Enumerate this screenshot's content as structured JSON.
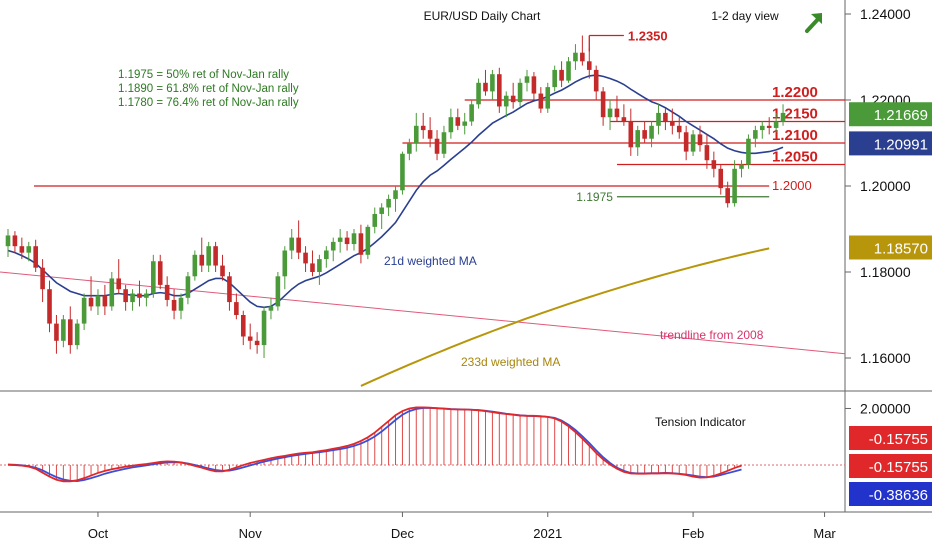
{
  "header": {
    "title": "EUR/USD Daily Chart",
    "view_label": "1-2 day view",
    "view_arrow": "up-right-arrow-icon"
  },
  "notes": [
    "1.1975 = 50% ret of Nov-Jan rally",
    "1.1890 = 61.8% ret of Nov-Jan rally",
    "1.1780 = 76.4% ret of Nov-Jan rally"
  ],
  "colors": {
    "up_candle": "#4a9a3a",
    "down_candle": "#c42a2a",
    "level_line": "#d01f1f",
    "ma21": "#2a3f8f",
    "ma233": "#b8960c",
    "trendline": "#e05a7a",
    "fib_line": "#3f7a33",
    "osc_red": "#e0282a",
    "osc_blue": "#3a4fd8",
    "badge_green": "#4a9a3a",
    "badge_navy": "#2a3f8f",
    "badge_gold": "#b8960c",
    "badge_red": "#e0282a",
    "badge_blue": "#2233cc"
  },
  "chart_data": [
    {
      "type": "candlestick",
      "title": "EUR/USD Daily Chart",
      "ylim": [
        1.152,
        1.245
      ],
      "y_ticks": [
        "1.24000",
        "1.22000",
        "1.20000",
        "1.18000",
        "1.16000"
      ],
      "x_ticks": [
        "Oct",
        "Nov",
        "Dec",
        "2021",
        "Feb",
        "Mar"
      ],
      "candles_ohlc": [
        [
          1.186,
          1.19,
          1.1835,
          1.1885
        ],
        [
          1.1885,
          1.1895,
          1.1845,
          1.186
        ],
        [
          1.186,
          1.188,
          1.183,
          1.1845
        ],
        [
          1.1845,
          1.187,
          1.1825,
          1.186
        ],
        [
          1.186,
          1.1875,
          1.18,
          1.181
        ],
        [
          1.181,
          1.183,
          1.173,
          1.176
        ],
        [
          1.176,
          1.178,
          1.166,
          1.168
        ],
        [
          1.168,
          1.17,
          1.161,
          1.164
        ],
        [
          1.164,
          1.17,
          1.1625,
          1.169
        ],
        [
          1.169,
          1.172,
          1.161,
          1.163
        ],
        [
          1.163,
          1.169,
          1.162,
          1.168
        ],
        [
          1.168,
          1.175,
          1.1665,
          1.174
        ],
        [
          1.174,
          1.179,
          1.171,
          1.172
        ],
        [
          1.172,
          1.176,
          1.17,
          1.1745
        ],
        [
          1.1745,
          1.177,
          1.17,
          1.172
        ],
        [
          1.172,
          1.18,
          1.171,
          1.1785
        ],
        [
          1.1785,
          1.183,
          1.175,
          1.176
        ],
        [
          1.176,
          1.177,
          1.171,
          1.173
        ],
        [
          1.173,
          1.176,
          1.171,
          1.175
        ],
        [
          1.175,
          1.178,
          1.172,
          1.174
        ],
        [
          1.174,
          1.176,
          1.172,
          1.175
        ],
        [
          1.175,
          1.184,
          1.174,
          1.1825
        ],
        [
          1.1825,
          1.184,
          1.176,
          1.177
        ],
        [
          1.177,
          1.179,
          1.172,
          1.1735
        ],
        [
          1.1735,
          1.176,
          1.169,
          1.171
        ],
        [
          1.171,
          1.175,
          1.169,
          1.174
        ],
        [
          1.174,
          1.18,
          1.1725,
          1.179
        ],
        [
          1.179,
          1.185,
          1.178,
          1.184
        ],
        [
          1.184,
          1.188,
          1.18,
          1.1815
        ],
        [
          1.1815,
          1.187,
          1.18,
          1.186
        ],
        [
          1.186,
          1.187,
          1.18,
          1.1815
        ],
        [
          1.1815,
          1.184,
          1.178,
          1.179
        ],
        [
          1.179,
          1.18,
          1.171,
          1.173
        ],
        [
          1.173,
          1.175,
          1.169,
          1.17
        ],
        [
          1.17,
          1.171,
          1.163,
          1.165
        ],
        [
          1.165,
          1.168,
          1.162,
          1.164
        ],
        [
          1.164,
          1.166,
          1.161,
          1.163
        ],
        [
          1.163,
          1.172,
          1.16,
          1.171
        ],
        [
          1.171,
          1.174,
          1.169,
          1.172
        ],
        [
          1.172,
          1.18,
          1.171,
          1.179
        ],
        [
          1.179,
          1.186,
          1.176,
          1.185
        ],
        [
          1.185,
          1.19,
          1.183,
          1.188
        ],
        [
          1.188,
          1.192,
          1.183,
          1.1845
        ],
        [
          1.1845,
          1.186,
          1.18,
          1.182
        ],
        [
          1.182,
          1.185,
          1.179,
          1.18
        ],
        [
          1.18,
          1.184,
          1.177,
          1.183
        ],
        [
          1.183,
          1.186,
          1.181,
          1.185
        ],
        [
          1.185,
          1.188,
          1.1825,
          1.187
        ],
        [
          1.187,
          1.19,
          1.1845,
          1.188
        ],
        [
          1.188,
          1.1895,
          1.185,
          1.1865
        ],
        [
          1.1865,
          1.19,
          1.185,
          1.189
        ],
        [
          1.189,
          1.191,
          1.182,
          1.184
        ],
        [
          1.184,
          1.191,
          1.183,
          1.1905
        ],
        [
          1.1905,
          1.195,
          1.189,
          1.1935
        ],
        [
          1.1935,
          1.196,
          1.19,
          1.195
        ],
        [
          1.195,
          1.198,
          1.193,
          1.197
        ],
        [
          1.197,
          1.2,
          1.194,
          1.199
        ],
        [
          1.199,
          1.208,
          1.198,
          1.2075
        ],
        [
          1.2075,
          1.211,
          1.206,
          1.21
        ],
        [
          1.21,
          1.217,
          1.208,
          1.214
        ],
        [
          1.214,
          1.217,
          1.211,
          1.213
        ],
        [
          1.213,
          1.216,
          1.209,
          1.211
        ],
        [
          1.211,
          1.213,
          1.206,
          1.2075
        ],
        [
          1.2075,
          1.214,
          1.2065,
          1.2125
        ],
        [
          1.2125,
          1.218,
          1.211,
          1.216
        ],
        [
          1.216,
          1.218,
          1.213,
          1.214
        ],
        [
          1.214,
          1.217,
          1.212,
          1.215
        ],
        [
          1.215,
          1.22,
          1.214,
          1.219
        ],
        [
          1.219,
          1.225,
          1.218,
          1.224
        ],
        [
          1.224,
          1.227,
          1.221,
          1.222
        ],
        [
          1.222,
          1.227,
          1.22,
          1.226
        ],
        [
          1.226,
          1.2275,
          1.217,
          1.2185
        ],
        [
          1.2185,
          1.222,
          1.216,
          1.221
        ],
        [
          1.221,
          1.224,
          1.218,
          1.2195
        ],
        [
          1.2195,
          1.225,
          1.2185,
          1.224
        ],
        [
          1.224,
          1.227,
          1.222,
          1.2255
        ],
        [
          1.2255,
          1.2265,
          1.22,
          1.2215
        ],
        [
          1.2215,
          1.223,
          1.217,
          1.218
        ],
        [
          1.218,
          1.224,
          1.217,
          1.223
        ],
        [
          1.223,
          1.228,
          1.222,
          1.227
        ],
        [
          1.227,
          1.229,
          1.223,
          1.2245
        ],
        [
          1.2245,
          1.23,
          1.224,
          1.229
        ],
        [
          1.229,
          1.233,
          1.227,
          1.231
        ],
        [
          1.231,
          1.235,
          1.228,
          1.229
        ],
        [
          1.229,
          1.232,
          1.225,
          1.227
        ],
        [
          1.227,
          1.228,
          1.22,
          1.222
        ],
        [
          1.222,
          1.223,
          1.214,
          1.216
        ],
        [
          1.216,
          1.22,
          1.213,
          1.218
        ],
        [
          1.218,
          1.221,
          1.215,
          1.216
        ],
        [
          1.216,
          1.219,
          1.214,
          1.215
        ],
        [
          1.215,
          1.218,
          1.207,
          1.209
        ],
        [
          1.209,
          1.214,
          1.207,
          1.213
        ],
        [
          1.213,
          1.215,
          1.21,
          1.211
        ],
        [
          1.211,
          1.215,
          1.209,
          1.214
        ],
        [
          1.214,
          1.219,
          1.212,
          1.217
        ],
        [
          1.217,
          1.218,
          1.213,
          1.215
        ],
        [
          1.215,
          1.218,
          1.212,
          1.214
        ],
        [
          1.214,
          1.216,
          1.211,
          1.2125
        ],
        [
          1.2125,
          1.214,
          1.206,
          1.208
        ],
        [
          1.208,
          1.213,
          1.207,
          1.212
        ],
        [
          1.212,
          1.214,
          1.208,
          1.2095
        ],
        [
          1.2095,
          1.212,
          1.204,
          1.206
        ],
        [
          1.206,
          1.208,
          1.202,
          1.204
        ],
        [
          1.204,
          1.205,
          1.198,
          1.1995
        ],
        [
          1.1995,
          1.201,
          1.195,
          1.196
        ],
        [
          1.196,
          1.206,
          1.1952,
          1.204
        ],
        [
          1.204,
          1.206,
          1.202,
          1.205
        ],
        [
          1.205,
          1.212,
          1.204,
          1.211
        ],
        [
          1.211,
          1.214,
          1.209,
          1.213
        ],
        [
          1.213,
          1.215,
          1.211,
          1.214
        ],
        [
          1.214,
          1.216,
          1.212,
          1.2135
        ],
        [
          1.2135,
          1.217,
          1.2125,
          1.215
        ],
        [
          1.215,
          1.219,
          1.214,
          1.217
        ]
      ],
      "ma21": [
        1.185,
        1.1845,
        1.1838,
        1.183,
        1.182,
        1.1805,
        1.179,
        1.1775,
        1.1765,
        1.1755,
        1.175,
        1.1745,
        1.1745,
        1.1745,
        1.1745,
        1.1748,
        1.175,
        1.1748,
        1.1746,
        1.1745,
        1.1745,
        1.175,
        1.1752,
        1.175,
        1.1745,
        1.1745,
        1.175,
        1.176,
        1.177,
        1.178,
        1.1785,
        1.1785,
        1.1775,
        1.176,
        1.1745,
        1.173,
        1.172,
        1.1718,
        1.172,
        1.173,
        1.1745,
        1.176,
        1.1772,
        1.178,
        1.1785,
        1.179,
        1.1798,
        1.1808,
        1.1818,
        1.1828,
        1.1838,
        1.1845,
        1.1855,
        1.1868,
        1.1882,
        1.1898,
        1.1915,
        1.194,
        1.1965,
        1.199,
        1.201,
        1.2025,
        1.2035,
        1.2048,
        1.2062,
        1.2075,
        1.2088,
        1.2102,
        1.2118,
        1.2132,
        1.2146,
        1.2155,
        1.2164,
        1.2172,
        1.2182,
        1.2192,
        1.2198,
        1.2202,
        1.2208,
        1.2216,
        1.2223,
        1.2232,
        1.2242,
        1.225,
        1.2256,
        1.2258,
        1.2255,
        1.225,
        1.2244,
        1.2236,
        1.2225,
        1.2215,
        1.2205,
        1.2196,
        1.219,
        1.2182,
        1.2172,
        1.2162,
        1.215,
        1.214,
        1.213,
        1.212,
        1.211,
        1.2098,
        1.2088,
        1.2082,
        1.2078,
        1.2076,
        1.2076,
        1.2078,
        1.208,
        1.2084,
        1.209
      ],
      "ma233_start": 1.1535,
      "ma233_end": 1.1855,
      "trendline_start": 1.18,
      "trendline_end": 1.161,
      "levels": [
        {
          "label": "1.2350",
          "value": 1.235
        },
        {
          "label": "1.2200",
          "value": 1.22
        },
        {
          "label": "1.2150",
          "value": 1.215
        },
        {
          "label": "1.2100",
          "value": 1.21
        },
        {
          "label": "1.2050",
          "value": 1.205
        },
        {
          "label": "1.2000",
          "value": 1.2
        },
        {
          "label": "1.1975",
          "value": 1.1975
        }
      ],
      "price_badges": [
        {
          "label": "1.21669",
          "value": 1.21669
        },
        {
          "label": "1.20991",
          "value": 1.20991
        },
        {
          "label": "1.18570",
          "value": 1.1857
        }
      ],
      "annotations": [
        "21d weighted MA",
        "233d weighted MA",
        "trendline from 2008"
      ]
    },
    {
      "type": "line",
      "title": "Tension Indicator",
      "ylim": [
        -0.7,
        2.3
      ],
      "y_ticks": [
        "2.00000"
      ],
      "reference_line": -0.15755,
      "series_red": [
        -0.15,
        -0.16,
        -0.18,
        -0.22,
        -0.3,
        -0.45,
        -0.6,
        -0.72,
        -0.78,
        -0.78,
        -0.74,
        -0.66,
        -0.56,
        -0.46,
        -0.38,
        -0.32,
        -0.27,
        -0.22,
        -0.18,
        -0.15,
        -0.12,
        -0.08,
        -0.04,
        -0.02,
        -0.03,
        -0.06,
        -0.12,
        -0.19,
        -0.26,
        -0.34,
        -0.4,
        -0.4,
        -0.34,
        -0.25,
        -0.16,
        -0.08,
        -0.02,
        0.04,
        0.1,
        0.15,
        0.19,
        0.24,
        0.28,
        0.31,
        0.33,
        0.37,
        0.41,
        0.46,
        0.51,
        0.57,
        0.65,
        0.76,
        0.9,
        1.08,
        1.3,
        1.52,
        1.74,
        1.9,
        2.0,
        2.04,
        2.04,
        2.03,
        2.01,
        1.99,
        1.97,
        1.96,
        1.96,
        1.95,
        1.93,
        1.9,
        1.86,
        1.82,
        1.79,
        1.76,
        1.73,
        1.72,
        1.72,
        1.7,
        1.68,
        1.62,
        1.5,
        1.32,
        1.1,
        0.85,
        0.58,
        0.3,
        0.06,
        -0.14,
        -0.3,
        -0.42,
        -0.48,
        -0.49,
        -0.49,
        -0.48,
        -0.48,
        -0.47,
        -0.48,
        -0.5,
        -0.54,
        -0.6,
        -0.64,
        -0.63,
        -0.57,
        -0.48,
        -0.38,
        -0.27,
        -0.18
      ],
      "series_blue": [
        -0.14,
        -0.15,
        -0.17,
        -0.2,
        -0.26,
        -0.36,
        -0.5,
        -0.62,
        -0.71,
        -0.76,
        -0.77,
        -0.73,
        -0.66,
        -0.58,
        -0.49,
        -0.42,
        -0.36,
        -0.3,
        -0.25,
        -0.21,
        -0.17,
        -0.13,
        -0.09,
        -0.06,
        -0.05,
        -0.06,
        -0.1,
        -0.16,
        -0.22,
        -0.29,
        -0.35,
        -0.38,
        -0.37,
        -0.32,
        -0.25,
        -0.17,
        -0.1,
        -0.03,
        0.03,
        0.09,
        0.14,
        0.19,
        0.23,
        0.27,
        0.3,
        0.33,
        0.37,
        0.41,
        0.45,
        0.5,
        0.57,
        0.66,
        0.78,
        0.93,
        1.12,
        1.34,
        1.56,
        1.76,
        1.9,
        1.98,
        2.02,
        2.02,
        2.01,
        2.0,
        1.98,
        1.97,
        1.96,
        1.95,
        1.94,
        1.91,
        1.88,
        1.84,
        1.8,
        1.77,
        1.74,
        1.72,
        1.71,
        1.7,
        1.68,
        1.64,
        1.54,
        1.38,
        1.18,
        0.94,
        0.68,
        0.4,
        0.14,
        -0.08,
        -0.26,
        -0.38,
        -0.46,
        -0.48,
        -0.48,
        -0.47,
        -0.47,
        -0.46,
        -0.47,
        -0.49,
        -0.52,
        -0.56,
        -0.6,
        -0.62,
        -0.6,
        -0.54,
        -0.47,
        -0.4,
        -0.33
      ],
      "badges": [
        {
          "label": "-0.15755",
          "value": -0.15755
        },
        {
          "label": "-0.15755",
          "value": -0.15755
        },
        {
          "label": "-0.38636",
          "value": -0.38636
        }
      ]
    }
  ]
}
